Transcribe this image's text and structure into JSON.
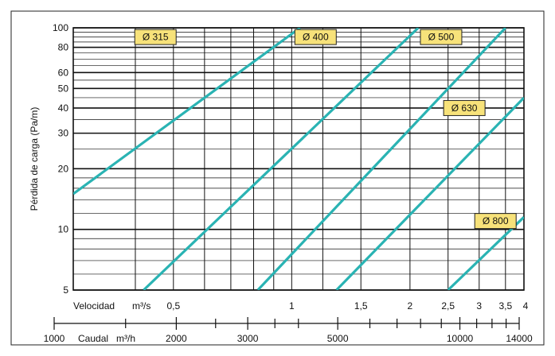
{
  "chart_data": {
    "type": "line",
    "xscale": "log",
    "yscale": "log",
    "ylabel": "Pérdida de carga (Pa/m)",
    "ylim": [
      5,
      100
    ],
    "y_ticks": [
      5,
      10,
      20,
      30,
      40,
      50,
      60,
      80,
      100
    ],
    "x_primary_axis": {
      "label": "Velocidad",
      "unit": "m³/s",
      "range": [
        0.278,
        3.9
      ],
      "labeled_ticks": [
        {
          "value": 0.5,
          "label": "0,5"
        },
        {
          "value": 1,
          "label": "1"
        },
        {
          "value": 1.5,
          "label": "1,5"
        },
        {
          "value": 2,
          "label": "2"
        },
        {
          "value": 2.5,
          "label": "2,5"
        },
        {
          "value": 3,
          "label": "3"
        },
        {
          "value": 3.5,
          "label": "3,5"
        },
        {
          "value": 4,
          "label": "4"
        }
      ]
    },
    "x_secondary_axis": {
      "label": "Caudal",
      "unit": "m³/h",
      "range": [
        1000,
        14000
      ],
      "labeled_ticks": [
        1000,
        2000,
        3000,
        5000,
        10000,
        14000
      ]
    },
    "grid": true,
    "series": [
      {
        "name": "Ø 315",
        "color": "#2ab3b3",
        "points": [
          [
            0.278,
            15
          ],
          [
            1.05,
            100
          ]
        ]
      },
      {
        "name": "Ø 400",
        "color": "#2ab3b3",
        "points": [
          [
            0.42,
            5
          ],
          [
            2.1,
            100
          ]
        ]
      },
      {
        "name": "Ø 500",
        "color": "#2ab3b3",
        "points": [
          [
            0.82,
            5
          ],
          [
            3.5,
            100
          ]
        ]
      },
      {
        "name": "Ø 630",
        "color": "#2ab3b3",
        "points": [
          [
            1.3,
            5
          ],
          [
            3.9,
            45
          ]
        ]
      },
      {
        "name": "Ø 800",
        "color": "#2ab3b3",
        "points": [
          [
            2.5,
            5
          ],
          [
            3.9,
            11.5
          ]
        ]
      }
    ]
  }
}
